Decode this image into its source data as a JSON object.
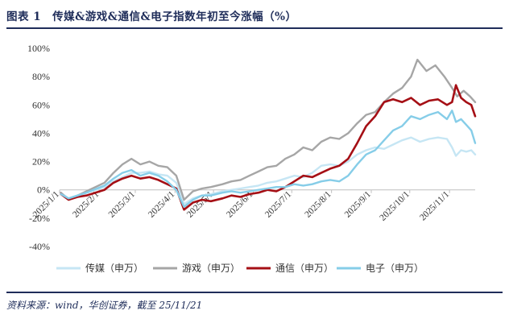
{
  "header": {
    "title": "图表 1　传媒&游戏&通信&电子指数年初至今涨幅（%）"
  },
  "footer": {
    "source": "资料来源：wind，华创证券，截至 25/11/21"
  },
  "chart_data": {
    "type": "line",
    "title": "",
    "xlabel": "",
    "ylabel": "",
    "ylim": [
      -40,
      100
    ],
    "y_ticks": [
      -40,
      -20,
      0,
      20,
      40,
      60,
      80,
      100
    ],
    "y_tick_labels": [
      "-40%",
      "-20%",
      "0%",
      "20%",
      "40%",
      "60%",
      "80%",
      "100%"
    ],
    "x_range": [
      "2025-01-01",
      "2025-11-21"
    ],
    "x_ticks": [
      "2025-01-01",
      "2025-02-01",
      "2025-03-01",
      "2025-04-01",
      "2025-05-01",
      "2025-06-01",
      "2025-07-01",
      "2025-08-01",
      "2025-09-01",
      "2025-10-01",
      "2025-11-01"
    ],
    "x_tick_labels": [
      "2025/1/1",
      "2025/2/1",
      "2025/3/1",
      "2025/4/1",
      "2025/5/1",
      "2025/6/1",
      "2025/7/1",
      "2025/8/1",
      "2025/9/1",
      "2025/10/1",
      "2025/11/1"
    ],
    "grid": false,
    "legend_position": "bottom",
    "series": [
      {
        "name": "传媒（申万）",
        "color": "#c6e6f4",
        "points": [
          [
            "2025-01-02",
            -2
          ],
          [
            "2025-01-08",
            -6
          ],
          [
            "2025-01-15",
            -4
          ],
          [
            "2025-01-22",
            -2
          ],
          [
            "2025-02-05",
            2
          ],
          [
            "2025-02-12",
            6
          ],
          [
            "2025-02-19",
            9
          ],
          [
            "2025-02-26",
            12
          ],
          [
            "2025-03-05",
            12
          ],
          [
            "2025-03-12",
            13
          ],
          [
            "2025-03-19",
            11
          ],
          [
            "2025-03-26",
            10
          ],
          [
            "2025-04-02",
            5
          ],
          [
            "2025-04-08",
            -10
          ],
          [
            "2025-04-15",
            -6
          ],
          [
            "2025-04-22",
            -4
          ],
          [
            "2025-04-29",
            -3
          ],
          [
            "2025-05-08",
            -1
          ],
          [
            "2025-05-15",
            0
          ],
          [
            "2025-05-22",
            1
          ],
          [
            "2025-05-29",
            2
          ],
          [
            "2025-06-05",
            3
          ],
          [
            "2025-06-12",
            5
          ],
          [
            "2025-06-19",
            6
          ],
          [
            "2025-06-26",
            8
          ],
          [
            "2025-07-03",
            10
          ],
          [
            "2025-07-10",
            9
          ],
          [
            "2025-07-17",
            12
          ],
          [
            "2025-07-24",
            17
          ],
          [
            "2025-07-31",
            18
          ],
          [
            "2025-08-07",
            17
          ],
          [
            "2025-08-14",
            20
          ],
          [
            "2025-08-21",
            25
          ],
          [
            "2025-08-28",
            28
          ],
          [
            "2025-09-04",
            30
          ],
          [
            "2025-09-11",
            29
          ],
          [
            "2025-09-18",
            32
          ],
          [
            "2025-09-25",
            35
          ],
          [
            "2025-10-02",
            37
          ],
          [
            "2025-10-09",
            34
          ],
          [
            "2025-10-16",
            36
          ],
          [
            "2025-10-23",
            37
          ],
          [
            "2025-10-30",
            36
          ],
          [
            "2025-11-03",
            30
          ],
          [
            "2025-11-06",
            24
          ],
          [
            "2025-11-10",
            28
          ],
          [
            "2025-11-14",
            27
          ],
          [
            "2025-11-18",
            28
          ],
          [
            "2025-11-21",
            25
          ]
        ]
      },
      {
        "name": "游戏（申万）",
        "color": "#a6a6a6",
        "points": [
          [
            "2025-01-02",
            -2
          ],
          [
            "2025-01-08",
            -7
          ],
          [
            "2025-01-15",
            -4
          ],
          [
            "2025-01-22",
            -1
          ],
          [
            "2025-02-05",
            5
          ],
          [
            "2025-02-12",
            12
          ],
          [
            "2025-02-19",
            18
          ],
          [
            "2025-02-26",
            22
          ],
          [
            "2025-03-05",
            18
          ],
          [
            "2025-03-12",
            20
          ],
          [
            "2025-03-19",
            17
          ],
          [
            "2025-03-26",
            16
          ],
          [
            "2025-04-02",
            10
          ],
          [
            "2025-04-08",
            -7
          ],
          [
            "2025-04-15",
            -1
          ],
          [
            "2025-04-22",
            1
          ],
          [
            "2025-04-29",
            2
          ],
          [
            "2025-05-08",
            4
          ],
          [
            "2025-05-15",
            6
          ],
          [
            "2025-05-22",
            7
          ],
          [
            "2025-05-29",
            10
          ],
          [
            "2025-06-05",
            13
          ],
          [
            "2025-06-12",
            16
          ],
          [
            "2025-06-19",
            17
          ],
          [
            "2025-06-26",
            22
          ],
          [
            "2025-07-03",
            25
          ],
          [
            "2025-07-10",
            30
          ],
          [
            "2025-07-17",
            28
          ],
          [
            "2025-07-24",
            34
          ],
          [
            "2025-07-31",
            37
          ],
          [
            "2025-08-07",
            36
          ],
          [
            "2025-08-14",
            40
          ],
          [
            "2025-08-21",
            47
          ],
          [
            "2025-08-28",
            53
          ],
          [
            "2025-09-04",
            55
          ],
          [
            "2025-09-11",
            62
          ],
          [
            "2025-09-18",
            68
          ],
          [
            "2025-09-25",
            72
          ],
          [
            "2025-10-02",
            80
          ],
          [
            "2025-10-07",
            92
          ],
          [
            "2025-10-14",
            84
          ],
          [
            "2025-10-21",
            88
          ],
          [
            "2025-10-28",
            80
          ],
          [
            "2025-11-03",
            72
          ],
          [
            "2025-11-07",
            66
          ],
          [
            "2025-11-12",
            70
          ],
          [
            "2025-11-17",
            66
          ],
          [
            "2025-11-21",
            62
          ]
        ]
      },
      {
        "name": "通信（申万）",
        "color": "#a50f15",
        "points": [
          [
            "2025-01-02",
            -3
          ],
          [
            "2025-01-08",
            -7
          ],
          [
            "2025-01-15",
            -5
          ],
          [
            "2025-01-22",
            -4
          ],
          [
            "2025-02-05",
            0
          ],
          [
            "2025-02-12",
            5
          ],
          [
            "2025-02-19",
            8
          ],
          [
            "2025-02-26",
            10
          ],
          [
            "2025-03-05",
            8
          ],
          [
            "2025-03-12",
            9
          ],
          [
            "2025-03-19",
            7
          ],
          [
            "2025-03-26",
            4
          ],
          [
            "2025-04-02",
            1
          ],
          [
            "2025-04-08",
            -14
          ],
          [
            "2025-04-15",
            -9
          ],
          [
            "2025-04-22",
            -7
          ],
          [
            "2025-04-29",
            -8
          ],
          [
            "2025-05-08",
            -6
          ],
          [
            "2025-05-15",
            -4
          ],
          [
            "2025-05-22",
            -5
          ],
          [
            "2025-05-29",
            -3
          ],
          [
            "2025-06-05",
            -2
          ],
          [
            "2025-06-12",
            0
          ],
          [
            "2025-06-19",
            -1
          ],
          [
            "2025-06-26",
            2
          ],
          [
            "2025-07-03",
            6
          ],
          [
            "2025-07-10",
            10
          ],
          [
            "2025-07-17",
            9
          ],
          [
            "2025-07-24",
            12
          ],
          [
            "2025-07-31",
            15
          ],
          [
            "2025-08-07",
            17
          ],
          [
            "2025-08-14",
            22
          ],
          [
            "2025-08-21",
            33
          ],
          [
            "2025-08-28",
            45
          ],
          [
            "2025-09-04",
            52
          ],
          [
            "2025-09-11",
            62
          ],
          [
            "2025-09-18",
            64
          ],
          [
            "2025-09-25",
            62
          ],
          [
            "2025-10-02",
            65
          ],
          [
            "2025-10-09",
            60
          ],
          [
            "2025-10-16",
            63
          ],
          [
            "2025-10-23",
            64
          ],
          [
            "2025-10-30",
            60
          ],
          [
            "2025-11-03",
            62
          ],
          [
            "2025-11-06",
            74
          ],
          [
            "2025-11-10",
            65
          ],
          [
            "2025-11-14",
            62
          ],
          [
            "2025-11-18",
            60
          ],
          [
            "2025-11-21",
            52
          ]
        ]
      },
      {
        "name": "电子（申万）",
        "color": "#86cde8",
        "points": [
          [
            "2025-01-02",
            -3
          ],
          [
            "2025-01-08",
            -6
          ],
          [
            "2025-01-15",
            -4
          ],
          [
            "2025-01-22",
            -2
          ],
          [
            "2025-02-05",
            3
          ],
          [
            "2025-02-12",
            8
          ],
          [
            "2025-02-19",
            12
          ],
          [
            "2025-02-26",
            14
          ],
          [
            "2025-03-05",
            10
          ],
          [
            "2025-03-12",
            12
          ],
          [
            "2025-03-19",
            10
          ],
          [
            "2025-03-26",
            6
          ],
          [
            "2025-04-02",
            0
          ],
          [
            "2025-04-08",
            -12
          ],
          [
            "2025-04-15",
            -7
          ],
          [
            "2025-04-22",
            -4
          ],
          [
            "2025-04-29",
            -4
          ],
          [
            "2025-05-08",
            -2
          ],
          [
            "2025-05-15",
            -1
          ],
          [
            "2025-05-22",
            -2
          ],
          [
            "2025-05-29",
            -1
          ],
          [
            "2025-06-05",
            0
          ],
          [
            "2025-06-12",
            1
          ],
          [
            "2025-06-19",
            2
          ],
          [
            "2025-06-26",
            2
          ],
          [
            "2025-07-03",
            4
          ],
          [
            "2025-07-10",
            3
          ],
          [
            "2025-07-17",
            4
          ],
          [
            "2025-07-24",
            6
          ],
          [
            "2025-07-31",
            7
          ],
          [
            "2025-08-07",
            6
          ],
          [
            "2025-08-14",
            10
          ],
          [
            "2025-08-21",
            18
          ],
          [
            "2025-08-28",
            25
          ],
          [
            "2025-09-04",
            28
          ],
          [
            "2025-09-11",
            35
          ],
          [
            "2025-09-18",
            42
          ],
          [
            "2025-09-25",
            45
          ],
          [
            "2025-10-02",
            52
          ],
          [
            "2025-10-09",
            50
          ],
          [
            "2025-10-16",
            53
          ],
          [
            "2025-10-23",
            55
          ],
          [
            "2025-10-30",
            50
          ],
          [
            "2025-11-03",
            56
          ],
          [
            "2025-11-06",
            48
          ],
          [
            "2025-11-10",
            50
          ],
          [
            "2025-11-14",
            46
          ],
          [
            "2025-11-18",
            42
          ],
          [
            "2025-11-21",
            33
          ]
        ]
      }
    ]
  }
}
